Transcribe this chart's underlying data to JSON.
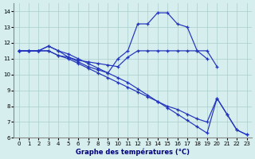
{
  "xlabel": "Graphe des températures (°C)",
  "bg_color": "#d6eeee",
  "grid_color": "#aacccc",
  "line_color": "#2233bb",
  "xlim": [
    -0.5,
    23.5
  ],
  "ylim": [
    6,
    14.5
  ],
  "xticks": [
    0,
    1,
    2,
    3,
    4,
    5,
    6,
    7,
    8,
    9,
    10,
    11,
    12,
    13,
    14,
    15,
    16,
    17,
    18,
    19,
    20,
    21,
    22,
    23
  ],
  "yticks": [
    6,
    7,
    8,
    9,
    10,
    11,
    12,
    13,
    14
  ],
  "series": [
    {
      "x": [
        0,
        1,
        2,
        3,
        4,
        5,
        6,
        7,
        8,
        9,
        10,
        11,
        12,
        13,
        14,
        15,
        16,
        17,
        18,
        19,
        20
      ],
      "y": [
        11.5,
        11.5,
        11.5,
        11.8,
        11.5,
        11.1,
        10.8,
        10.5,
        10.3,
        10.1,
        11.0,
        11.5,
        13.2,
        13.2,
        13.9,
        13.9,
        13.2,
        13.0,
        11.5,
        11.5,
        10.5
      ]
    },
    {
      "x": [
        0,
        1,
        2,
        3,
        4,
        5,
        6,
        7,
        8,
        9,
        10,
        11,
        12,
        13,
        14,
        15,
        16,
        17,
        18,
        19
      ],
      "y": [
        11.5,
        11.5,
        11.5,
        11.5,
        11.2,
        11.1,
        10.9,
        10.8,
        10.7,
        10.6,
        10.5,
        11.1,
        11.5,
        11.5,
        11.5,
        11.5,
        11.5,
        11.5,
        11.5,
        11.0
      ]
    },
    {
      "x": [
        0,
        1,
        2,
        3,
        4,
        5,
        6,
        7,
        8,
        9,
        10,
        11,
        12,
        13,
        14,
        15,
        16,
        17,
        18,
        19,
        20,
        21,
        22,
        23
      ],
      "y": [
        11.5,
        11.5,
        11.5,
        11.5,
        11.2,
        11.0,
        10.7,
        10.4,
        10.1,
        9.8,
        9.5,
        9.2,
        8.9,
        8.6,
        8.3,
        8.0,
        7.8,
        7.5,
        7.2,
        7.0,
        8.5,
        7.5,
        6.5,
        6.2
      ]
    },
    {
      "x": [
        0,
        1,
        2,
        3,
        4,
        5,
        6,
        7,
        8,
        9,
        10,
        11,
        12,
        13,
        14,
        15,
        16,
        17,
        18,
        19,
        20,
        21,
        22,
        23
      ],
      "y": [
        11.5,
        11.5,
        11.5,
        11.8,
        11.5,
        11.3,
        11.0,
        10.7,
        10.4,
        10.1,
        9.8,
        9.5,
        9.1,
        8.7,
        8.3,
        7.9,
        7.5,
        7.1,
        6.7,
        6.3,
        8.5,
        7.5,
        6.5,
        6.2
      ]
    }
  ]
}
